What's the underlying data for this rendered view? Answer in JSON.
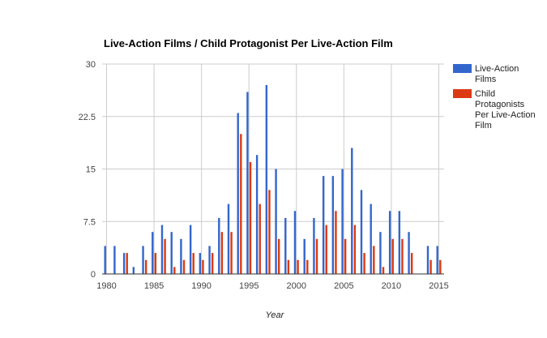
{
  "chart_data": {
    "type": "bar",
    "title": "Live-Action Films / Child Protagonist Per Live-Action Film",
    "xlabel": "Year",
    "ylabel": "",
    "ylim": [
      0,
      30
    ],
    "xlim": [
      1980,
      2015
    ],
    "y_ticks": [
      "0",
      "7.5",
      "15",
      "22.5",
      "30"
    ],
    "x_ticks": [
      "1980",
      "1985",
      "1990",
      "1995",
      "2000",
      "2005",
      "2010",
      "2015"
    ],
    "grid": true,
    "legend_position": "right",
    "x": [
      1980,
      1981,
      1982,
      1983,
      1984,
      1985,
      1986,
      1987,
      1988,
      1989,
      1990,
      1991,
      1992,
      1993,
      1994,
      1995,
      1996,
      1997,
      1998,
      1999,
      2000,
      2001,
      2002,
      2003,
      2004,
      2005,
      2006,
      2007,
      2008,
      2009,
      2010,
      2011,
      2012,
      2013,
      2014,
      2015
    ],
    "series": [
      {
        "name": "Live-Action Films",
        "color": "#3366cc",
        "values": [
          4,
          4,
          3,
          1,
          4,
          6,
          7,
          6,
          5,
          7,
          3,
          4,
          8,
          10,
          23,
          26,
          17,
          27,
          15,
          8,
          9,
          5,
          8,
          14,
          14,
          15,
          18,
          12,
          10,
          6,
          9,
          9,
          6,
          0,
          4,
          4
        ]
      },
      {
        "name": "Child Protagonists Per Live-Action Film",
        "color": "#dc3912",
        "values": [
          0,
          0,
          3,
          0,
          2,
          3,
          5,
          1,
          2,
          3,
          2,
          3,
          6,
          6,
          20,
          16,
          10,
          12,
          5,
          2,
          2,
          2,
          5,
          7,
          9,
          5,
          7,
          3,
          4,
          1,
          5,
          5,
          3,
          0,
          2,
          2
        ]
      }
    ],
    "legend": [
      {
        "lines": [
          "Live-Action",
          "Films"
        ],
        "color": "#3366cc"
      },
      {
        "lines": [
          "Child",
          "Protagonists",
          "Per Live-Action",
          "Film"
        ],
        "color": "#dc3912"
      }
    ]
  }
}
